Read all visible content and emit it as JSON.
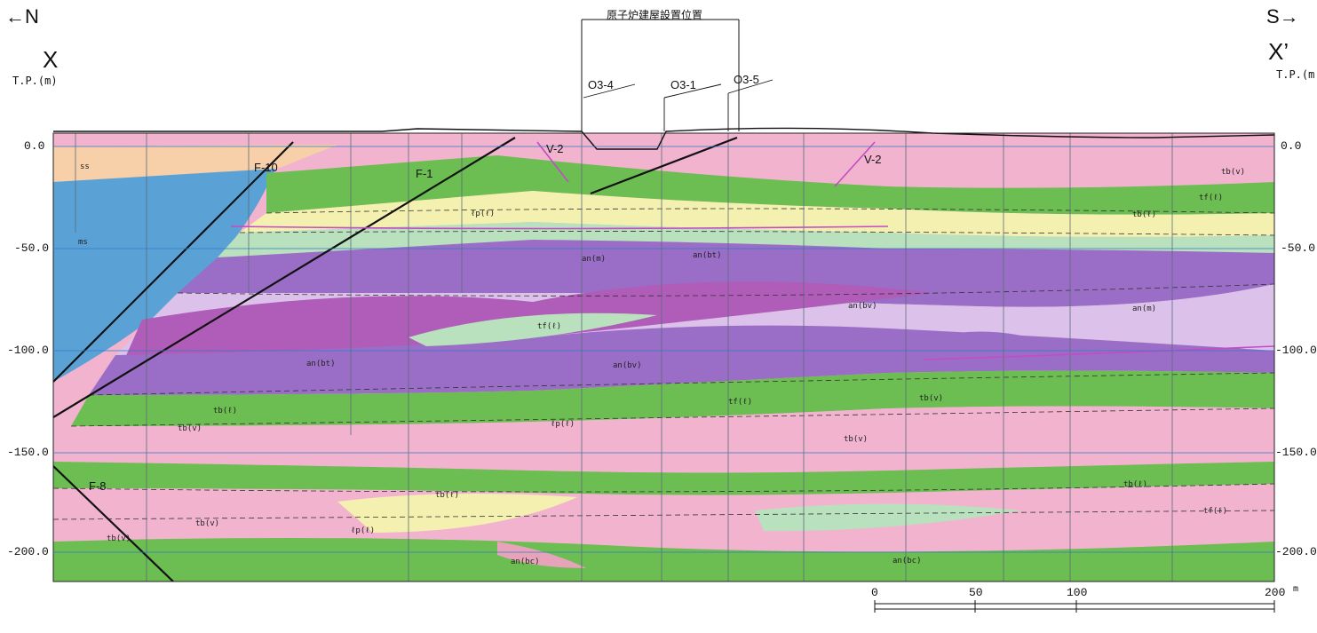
{
  "header": {
    "north": "←N",
    "south": "S→",
    "section_left": "X",
    "section_right": "X’",
    "tp_left": "T.P.(m)",
    "tp_right": "T.P.(m",
    "reactor_site": "原子炉建屋設置位置"
  },
  "elevations": [
    "0.0",
    "-50.0",
    "-100.0",
    "-150.0",
    "-200.0"
  ],
  "boreholes": [
    "O3-4",
    "O3-1",
    "O3-5"
  ],
  "faults": [
    "F-10",
    "F-1",
    "F-8",
    "V-2",
    "V-2"
  ],
  "scale": {
    "ticks": [
      "0",
      "50",
      "100",
      "200"
    ],
    "unit": "m"
  },
  "units": [
    "ss",
    "ms",
    "tb(v)",
    "tb(ℓ)",
    "tf(ℓ)",
    "ℓp(ℓ)",
    "an(bt)",
    "an(m)",
    "an(bv)",
    "an(bc)"
  ],
  "colors": {
    "ss": "#f7cfa8",
    "ms": "#5aa2d6",
    "tb_v": "#f2b3cf",
    "tb_l": "#6cbd52",
    "tf_l": "#b9e1bd",
    "lp_l": "#f4f0b0",
    "an_bt": "#9a6ec7",
    "an_m": "#dcc2ea",
    "an_bv": "#b05cb9",
    "an_bc": "#e7a3b9"
  }
}
